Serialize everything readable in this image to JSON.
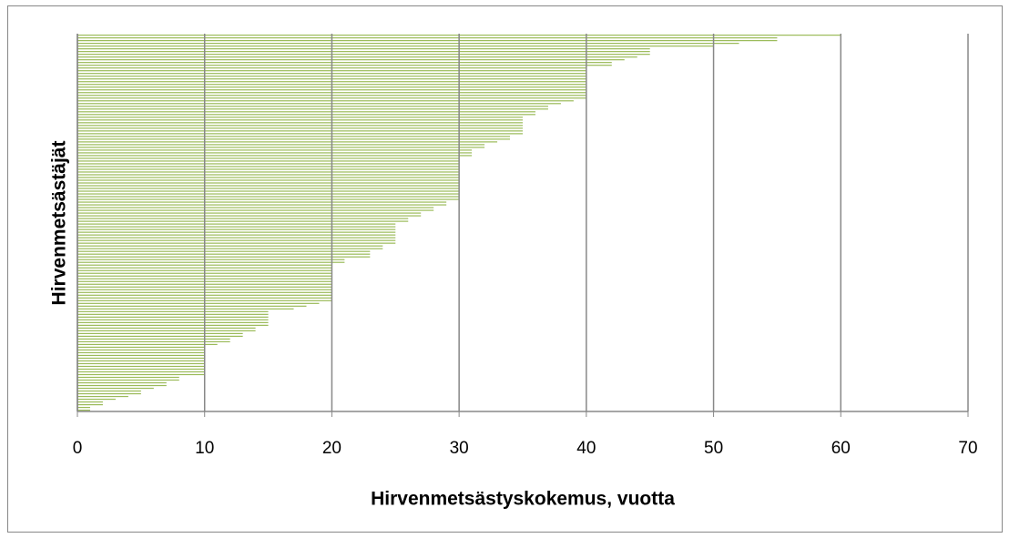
{
  "chart_data": {
    "type": "hbar",
    "xlabel": "Hirvenmetsästyskokemus, vuotta",
    "ylabel": "Hirvenmetsästäjät",
    "color": "#9bbb59",
    "values": [
      60,
      55,
      55,
      52,
      50,
      45,
      45,
      45,
      44,
      43,
      42,
      42,
      40,
      40,
      40,
      40,
      40,
      40,
      40,
      40,
      40,
      40,
      40,
      40,
      39,
      38,
      37,
      37,
      36,
      36,
      35,
      35,
      35,
      35,
      35,
      35,
      35,
      34,
      34,
      33,
      32,
      32,
      31,
      31,
      31,
      30,
      30,
      30,
      30,
      30,
      30,
      30,
      30,
      30,
      30,
      30,
      30,
      30,
      30,
      30,
      30,
      29,
      29,
      28,
      28,
      27,
      27,
      26,
      26,
      25,
      25,
      25,
      25,
      25,
      25,
      25,
      25,
      24,
      24,
      23,
      23,
      23,
      21,
      21,
      20,
      20,
      20,
      20,
      20,
      20,
      20,
      20,
      20,
      20,
      20,
      20,
      20,
      20,
      19,
      18,
      17,
      15,
      15,
      15,
      15,
      15,
      15,
      14,
      14,
      13,
      13,
      12,
      12,
      11,
      10,
      10,
      10,
      10,
      10,
      10,
      10,
      10,
      10,
      10,
      10,
      8,
      8,
      7,
      7,
      6,
      5,
      5,
      4,
      3,
      2,
      2,
      1,
      1
    ],
    "xlim": [
      0,
      70
    ],
    "xticks": [
      0,
      10,
      20,
      30,
      40,
      50,
      60,
      70
    ],
    "grid": true
  }
}
